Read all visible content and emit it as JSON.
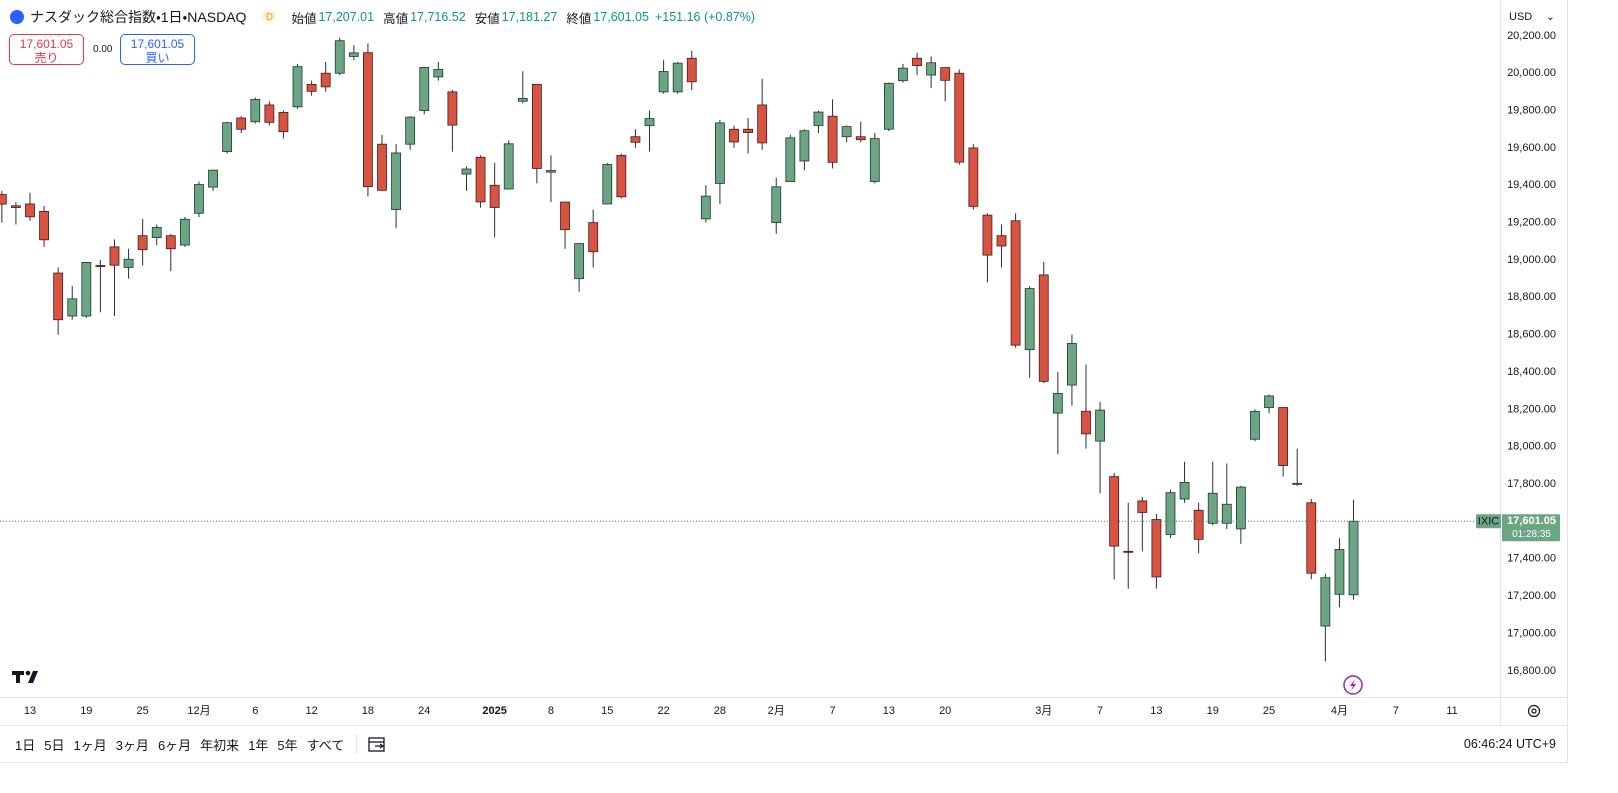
{
  "header": {
    "title": "ナスダック総合指数・1日・NASDAQ",
    "badge": "D",
    "open_label": "始値",
    "open": "17,207.01",
    "high_label": "高値",
    "high": "17,716.52",
    "low_label": "安値",
    "low": "17,181.27",
    "close_label": "終値",
    "close": "17,601.05",
    "change": "+151.16 (+0.87%)"
  },
  "trade": {
    "sell_price": "17,601.05",
    "sell_label": "売り",
    "spread": "0.00",
    "buy_price": "17,601.05",
    "buy_label": "買い"
  },
  "currency": "USD",
  "price_tag": {
    "symbol": "IXIC",
    "price": "17,601.05",
    "countdown": "01:28:35"
  },
  "toolbar": {
    "ranges": [
      "1日",
      "5日",
      "1ヶ月",
      "3ヶ月",
      "6ヶ月",
      "年初来",
      "1年",
      "5年",
      "すべて"
    ],
    "time": "06:46:24 UTC+9"
  },
  "chart_data": {
    "type": "candlestick",
    "up_color": "#6ba583",
    "down_color": "#d75442",
    "grid": false,
    "ylim": [
      16660,
      20392
    ],
    "yticks": [
      {
        "value": 16800,
        "label": "16,800.00"
      },
      {
        "value": 17000,
        "label": "17,000.00"
      },
      {
        "value": 17200,
        "label": "17,200.00"
      },
      {
        "value": 17400,
        "label": "17,400.00"
      },
      {
        "value": 17600,
        "label": "17,600.00"
      },
      {
        "value": 17800,
        "label": "17,800.00"
      },
      {
        "value": 18000,
        "label": "18,000.00"
      },
      {
        "value": 18200,
        "label": "18,200.00"
      },
      {
        "value": 18400,
        "label": "18,400.00"
      },
      {
        "value": 18600,
        "label": "18,600.00"
      },
      {
        "value": 18800,
        "label": "18,800.00"
      },
      {
        "value": 19000,
        "label": "19,000.00"
      },
      {
        "value": 19200,
        "label": "19,200.00"
      },
      {
        "value": 19400,
        "label": "19,400.00"
      },
      {
        "value": 19600,
        "label": "19,600.00"
      },
      {
        "value": 19800,
        "label": "19,800.00"
      },
      {
        "value": 20000,
        "label": "20,000.00"
      },
      {
        "value": 20200,
        "label": "20,200.00"
      }
    ],
    "categories": [
      null,
      null,
      "13",
      null,
      null,
      null,
      "19",
      null,
      null,
      null,
      "25",
      null,
      null,
      null,
      "12月",
      null,
      null,
      null,
      "6",
      null,
      null,
      null,
      "12",
      null,
      null,
      null,
      "18",
      null,
      null,
      null,
      "24",
      null,
      null,
      null,
      null,
      "2025",
      null,
      null,
      null,
      "8",
      null,
      null,
      null,
      "15",
      null,
      null,
      null,
      "22",
      null,
      null,
      null,
      "28",
      null,
      null,
      null,
      "2月",
      null,
      null,
      null,
      "7",
      null,
      null,
      null,
      "13",
      null,
      null,
      null,
      "20",
      null,
      null,
      null,
      null,
      null,
      null,
      "3月",
      null,
      null,
      null,
      "7",
      null,
      null,
      null,
      "13",
      null,
      null,
      null,
      "19",
      null,
      null,
      null,
      "25",
      null,
      null,
      null,
      null,
      "4月",
      null,
      null,
      null,
      "7",
      null,
      null,
      null,
      "11",
      null,
      null
    ],
    "open": [
      19350,
      19290,
      19300,
      19260,
      18930,
      18700,
      18700,
      18970,
      19070,
      18960,
      19130,
      19120,
      19130,
      19080,
      19250,
      19390,
      19580,
      19760,
      19740,
      19830,
      19790,
      19820,
      19940,
      20000,
      20000,
      20090,
      20110,
      19620,
      19270,
      19620,
      19800,
      19980,
      19900,
      19460,
      19550,
      19400,
      19380,
      19850,
      19940,
      19470,
      19310,
      18900,
      19200,
      19300,
      19560,
      19660,
      19720,
      19900,
      19900,
      20080,
      19220,
      19410,
      19700,
      19700,
      19830,
      19200,
      19420,
      19530,
      19720,
      19770,
      19660,
      19660,
      19420,
      19700,
      19960,
      20080,
      19990,
      20030,
      20000,
      19600,
      19240,
      19130,
      19210,
      18520,
      18920,
      18180,
      18330,
      18190,
      18030,
      17840,
      17440,
      17710,
      17610,
      17530,
      17720,
      17660,
      17590,
      17590,
      17560,
      18040,
      18210,
      18210,
      17800,
      17700,
      17040,
      17210,
      17207.01,
      null,
      null,
      null,
      null,
      null,
      null,
      null,
      null,
      null
    ],
    "high": [
      19370,
      19310,
      19360,
      19290,
      18960,
      18860,
      18990,
      19000,
      19110,
      19060,
      19220,
      19190,
      19140,
      19230,
      19420,
      19480,
      19740,
      19770,
      19870,
      19850,
      19800,
      20050,
      19960,
      20060,
      20190,
      20150,
      20160,
      19670,
      19620,
      19770,
      20030,
      20060,
      19910,
      19500,
      19560,
      19520,
      19640,
      20010,
      19940,
      19560,
      19310,
      19090,
      19270,
      19520,
      19570,
      19700,
      19800,
      20070,
      20060,
      20120,
      19400,
      19750,
      19720,
      19760,
      19970,
      19440,
      19670,
      19700,
      19800,
      19860,
      19720,
      19740,
      19680,
      19950,
      20050,
      20110,
      20090,
      20030,
      20020,
      19620,
      19250,
      19190,
      19250,
      18860,
      18990,
      18400,
      18600,
      18440,
      18240,
      17860,
      17700,
      17730,
      17640,
      17770,
      17920,
      17700,
      17920,
      17910,
      17790,
      18200,
      18280,
      18210,
      17990,
      17720,
      17320,
      17510,
      17716.52,
      null,
      null,
      null,
      null,
      null,
      null,
      null,
      null,
      null
    ],
    "low": [
      19200,
      19190,
      19210,
      19070,
      18600,
      18680,
      18690,
      18720,
      18700,
      18900,
      18970,
      19080,
      18940,
      19070,
      19230,
      19370,
      19570,
      19680,
      19730,
      19720,
      19650,
      19810,
      19880,
      19900,
      19990,
      20070,
      19340,
      19370,
      19170,
      19590,
      19780,
      19960,
      19580,
      19370,
      19280,
      19120,
      19380,
      19840,
      19410,
      19310,
      19060,
      18830,
      18960,
      19300,
      19330,
      19600,
      19580,
      19890,
      19890,
      19910,
      19200,
      19300,
      19600,
      19570,
      19590,
      19140,
      19420,
      19480,
      19680,
      19490,
      19630,
      19630,
      19410,
      19690,
      19950,
      19990,
      19920,
      19850,
      19510,
      19270,
      18880,
      18960,
      18530,
      18370,
      18340,
      17960,
      18220,
      17990,
      17750,
      17290,
      17240,
      17440,
      17240,
      17510,
      17700,
      17430,
      17580,
      17560,
      17480,
      18030,
      18180,
      17840,
      17790,
      17290,
      16850,
      17140,
      17181.27,
      null,
      null,
      null,
      null,
      null,
      null,
      null,
      null,
      null
    ],
    "close": [
      19299,
      19281,
      19231,
      19108,
      18680,
      18792,
      18987,
      18966,
      18972,
      19004,
      19055,
      19174,
      19060,
      19218,
      19404,
      19481,
      19735,
      19700,
      19860,
      19737,
      19687,
      20035,
      19903,
      19927,
      20174,
      20109,
      19393,
      19373,
      19573,
      19765,
      20031,
      20020,
      19722,
      19487,
      19311,
      19281,
      19622,
      19865,
      19490,
      19479,
      19162,
      19088,
      19044,
      19511,
      19338,
      19630,
      19757,
      20009,
      20054,
      19954,
      19342,
      19734,
      19632,
      19682,
      19627,
      19392,
      19654,
      19692,
      19792,
      19523,
      19714,
      19644,
      19650,
      19946,
      20027,
      20041,
      20056,
      19962,
      19524,
      19287,
      19026,
      19075,
      18544,
      18847,
      18350,
      18285,
      18553,
      18069,
      18196,
      17468,
      17436,
      17648,
      17303,
      17754,
      17809,
      17504,
      17751,
      17692,
      17784,
      18189,
      18272,
      17899,
      17804,
      17323,
      17299,
      17450,
      17601.05,
      null,
      null,
      null,
      null,
      null,
      null,
      null,
      null,
      null
    ]
  }
}
